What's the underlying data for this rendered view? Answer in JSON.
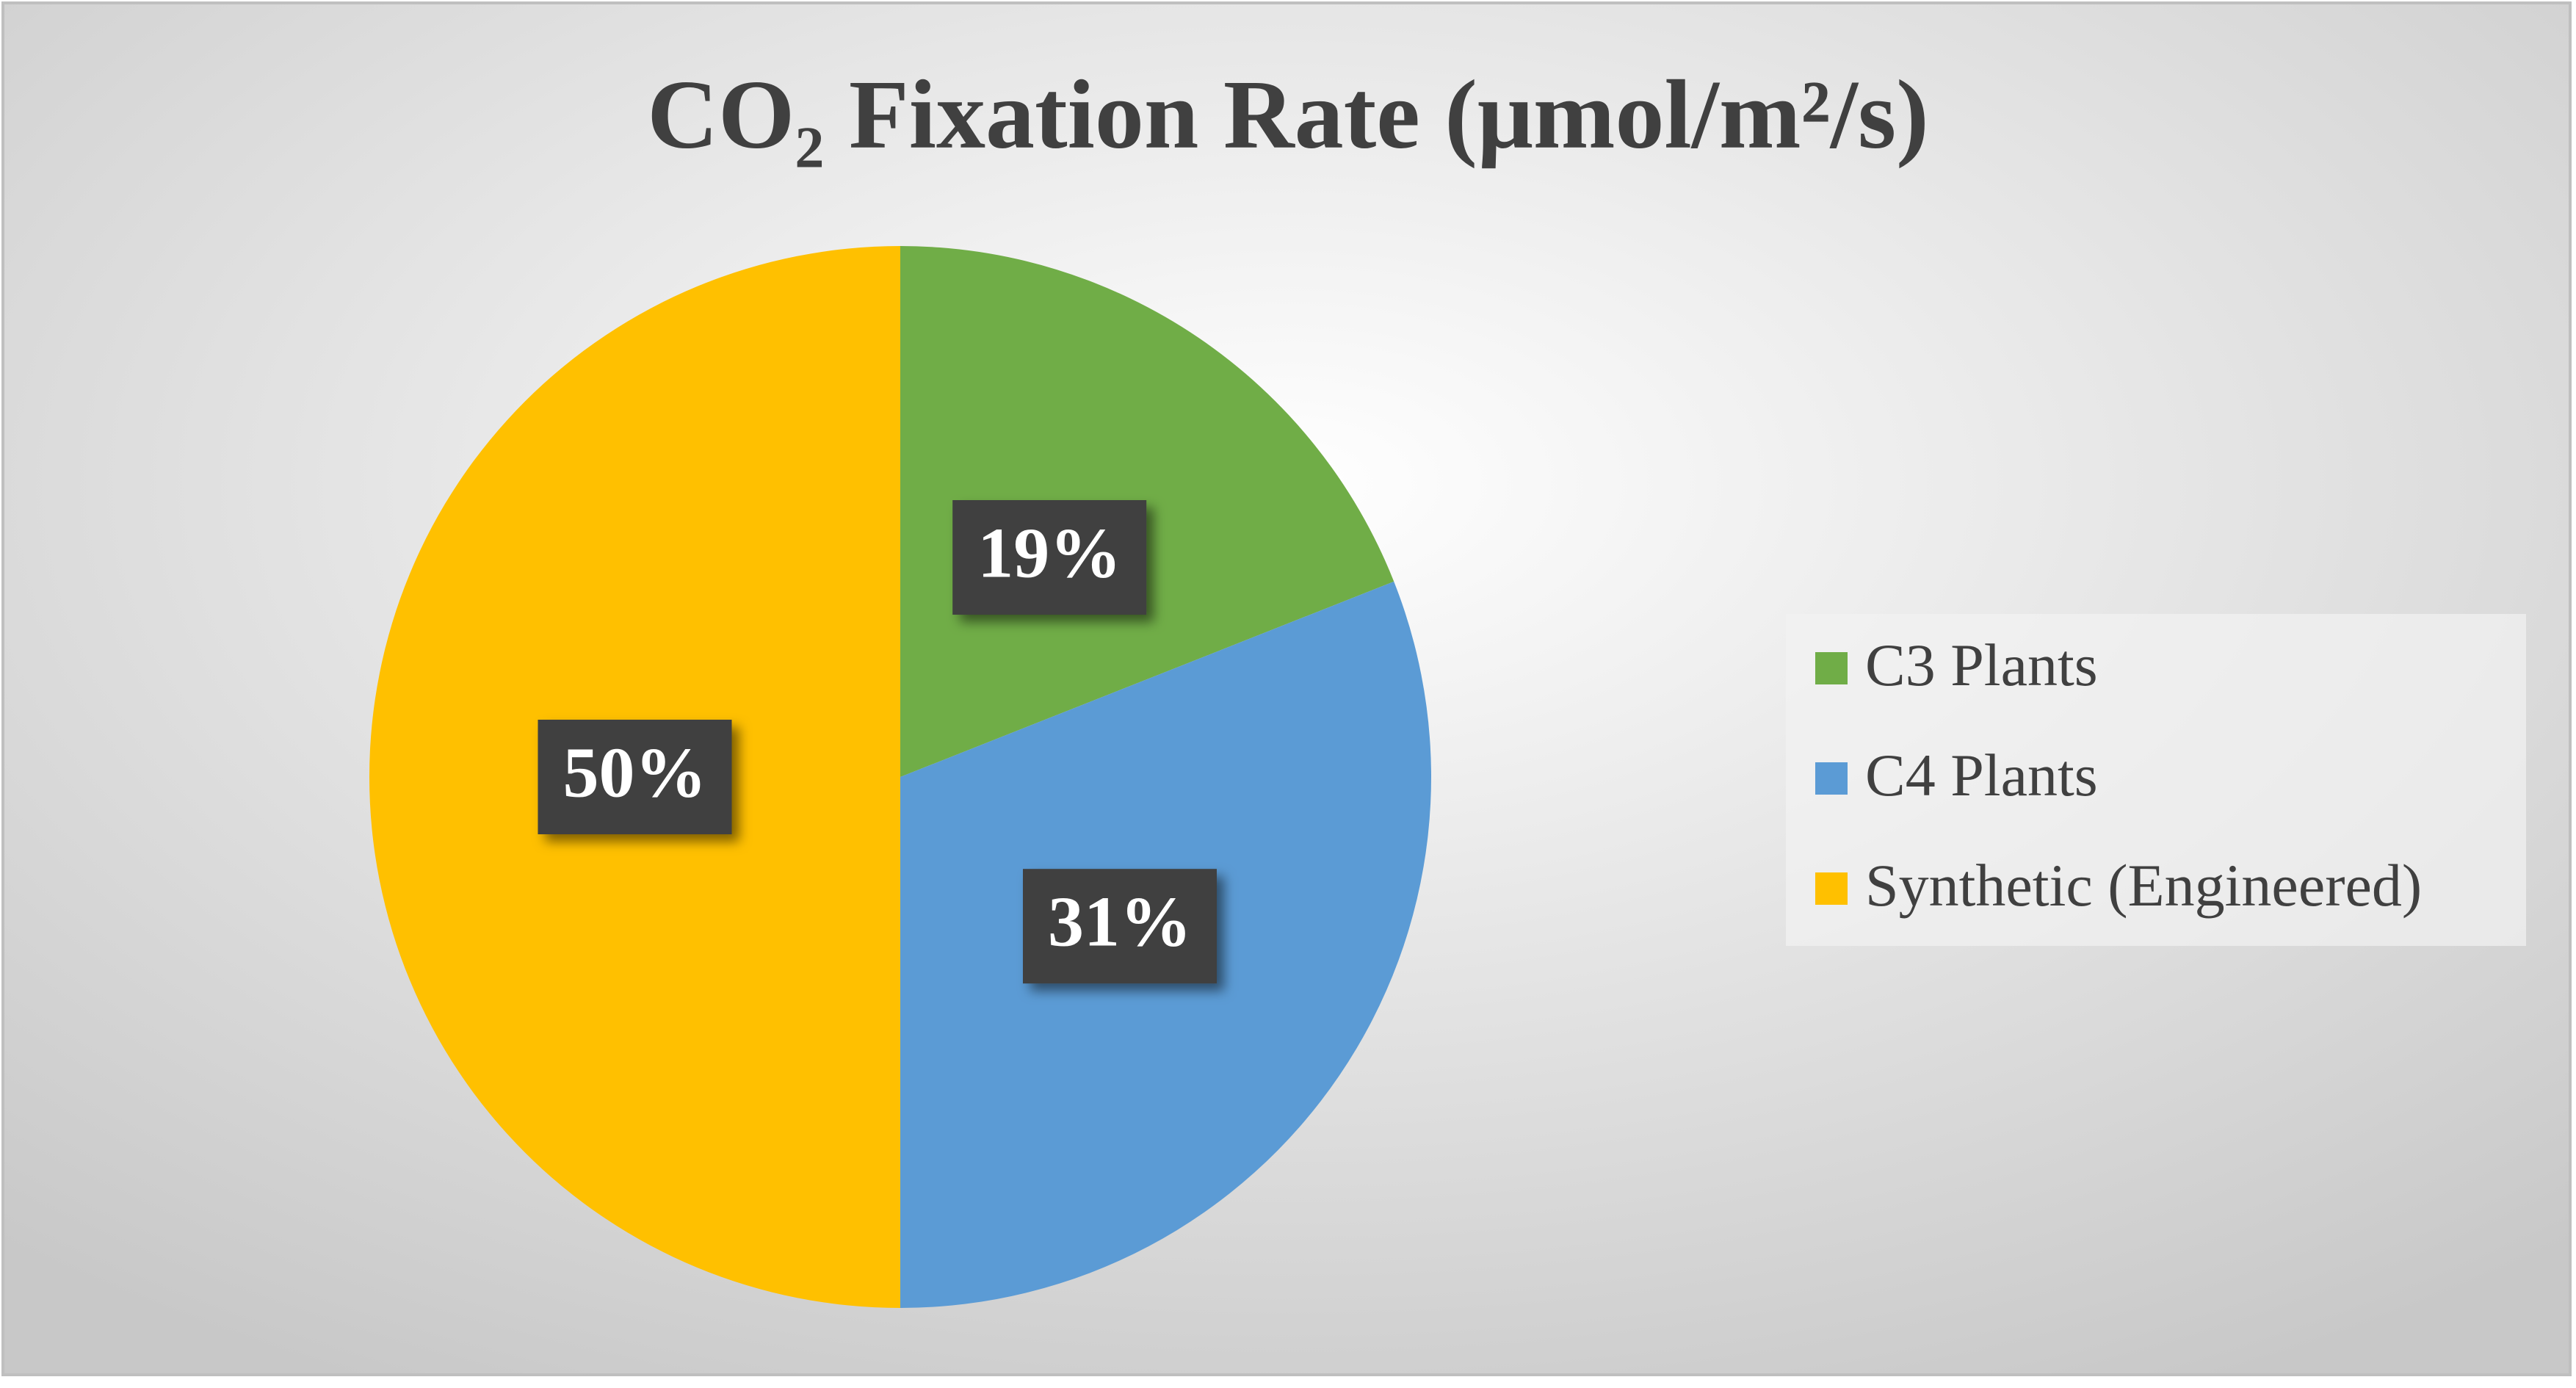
{
  "chart_data": {
    "type": "pie",
    "title": "CO₂ Fixation Rate (μmol/m²/s)",
    "categories": [
      "C3 Plants",
      "C4 Plants",
      "Synthetic (Engineered)"
    ],
    "values": [
      19,
      31,
      50
    ],
    "value_labels": [
      "19%",
      "31%",
      "50%"
    ],
    "colors": [
      "#70ad47",
      "#5b9bd5",
      "#ffc000"
    ],
    "legend": "right"
  }
}
